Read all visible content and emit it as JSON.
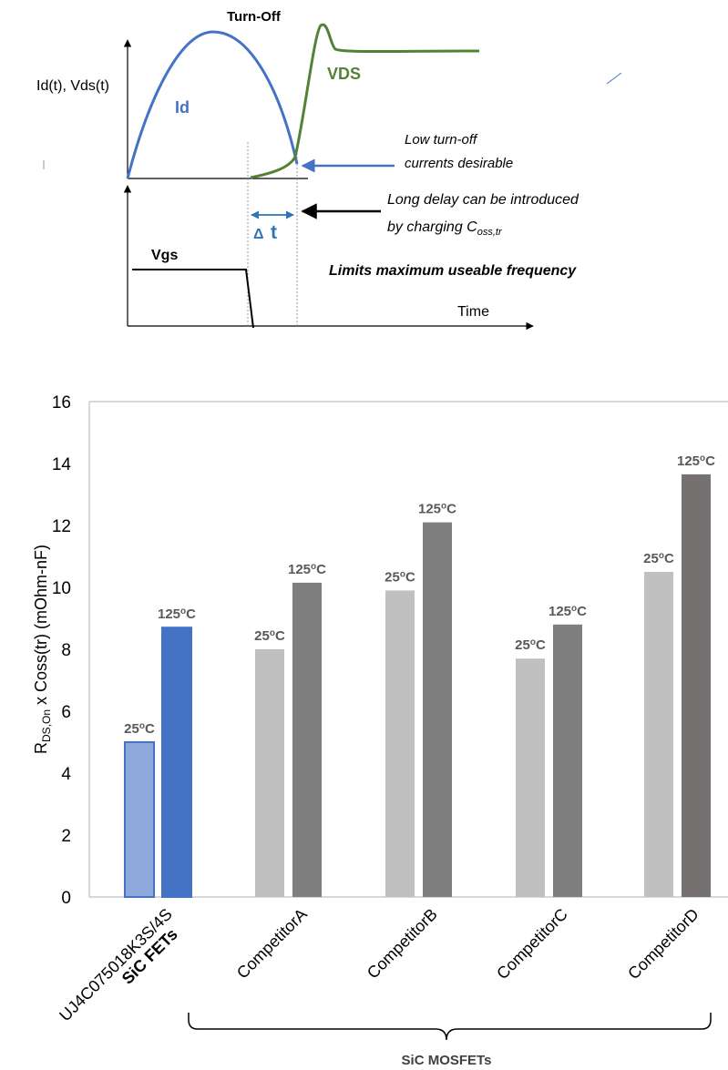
{
  "colors": {
    "id_curve": "#4472c4",
    "vds_curve": "#548235",
    "vgs_curve": "#000000",
    "delta_t": "#2e75b6",
    "sic_fet_25": "#8eaadb",
    "sic_fet_125": "#4472c4",
    "mosfet_25": "#c0c0c0",
    "mosfet_125": "#7f7f7f",
    "competitorD_125": "#767171"
  },
  "diagram": {
    "title": "Turn-Off",
    "y_axis_label": "Id(t), Vds(t)",
    "id_label": "Id",
    "vds_label": "VDS",
    "vgs_label": "Vgs",
    "delta_symbol": "Δ",
    "delta_t_letter": "t",
    "note_low_current_1": "Low turn-off",
    "note_low_current_2": "currents desirable",
    "note_delay_1": "Long delay can be introduced",
    "note_delay_2_prefix": "by charging C",
    "note_delay_2_sub": "oss,tr",
    "limits_note": "Limits maximum useable frequency",
    "time_label": "Time"
  },
  "chart_data": {
    "type": "bar",
    "ylabel_main": "R",
    "ylabel_sub": "DS,On",
    "ylabel_rest": " x Coss(tr)  (mOhm-nF)",
    "ylim": [
      0,
      16
    ],
    "yticks": [
      0,
      2,
      4,
      6,
      8,
      10,
      12,
      14,
      16
    ],
    "grid": false,
    "categories": [
      {
        "label": "UJ4C075018K3S/4S",
        "label2": "SiC FETs",
        "values": [
          5.0,
          8.7
        ],
        "bar_labels": [
          "25oC",
          "125oC"
        ]
      },
      {
        "label": "CompetitorA",
        "values": [
          8.0,
          10.15
        ],
        "bar_labels": [
          "25oC",
          "125oC"
        ]
      },
      {
        "label": "CompetitorB",
        "values": [
          9.9,
          12.1
        ],
        "bar_labels": [
          "25oC",
          "125oC"
        ]
      },
      {
        "label": "CompetitorC",
        "values": [
          7.7,
          8.8
        ],
        "bar_labels": [
          "25oC",
          "125oC"
        ]
      },
      {
        "label": "CompetitorD",
        "values": [
          10.5,
          13.65
        ],
        "bar_labels": [
          "25oC",
          "125oC"
        ]
      }
    ],
    "group_label": "SiC MOSFETs"
  }
}
